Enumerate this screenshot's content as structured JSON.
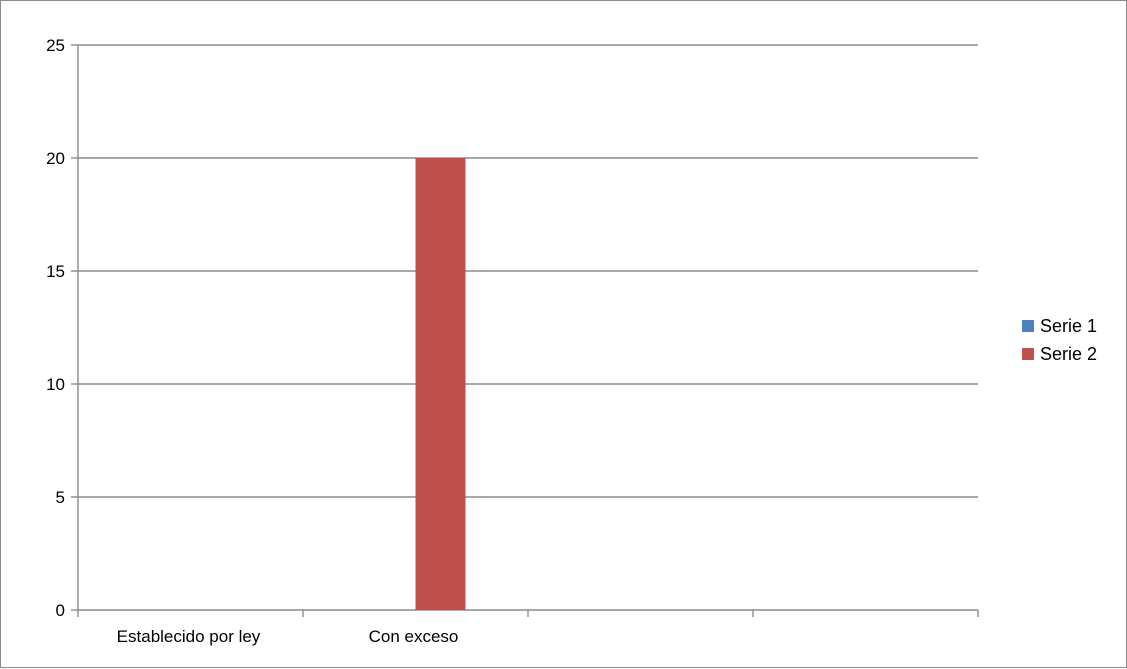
{
  "chart_data": {
    "type": "bar",
    "categories": [
      "Establecido por ley",
      "Con exceso",
      "",
      ""
    ],
    "series": [
      {
        "name": "Serie 1",
        "color": "#4f81bd",
        "values": [
          0,
          0,
          0,
          0
        ]
      },
      {
        "name": "Serie 2",
        "color": "#c0504d",
        "values": [
          0,
          20,
          0,
          0
        ]
      }
    ],
    "ylim": [
      0,
      25
    ],
    "yticks": [
      0,
      5,
      10,
      15,
      20,
      25
    ],
    "grid": true,
    "legend": "right"
  }
}
